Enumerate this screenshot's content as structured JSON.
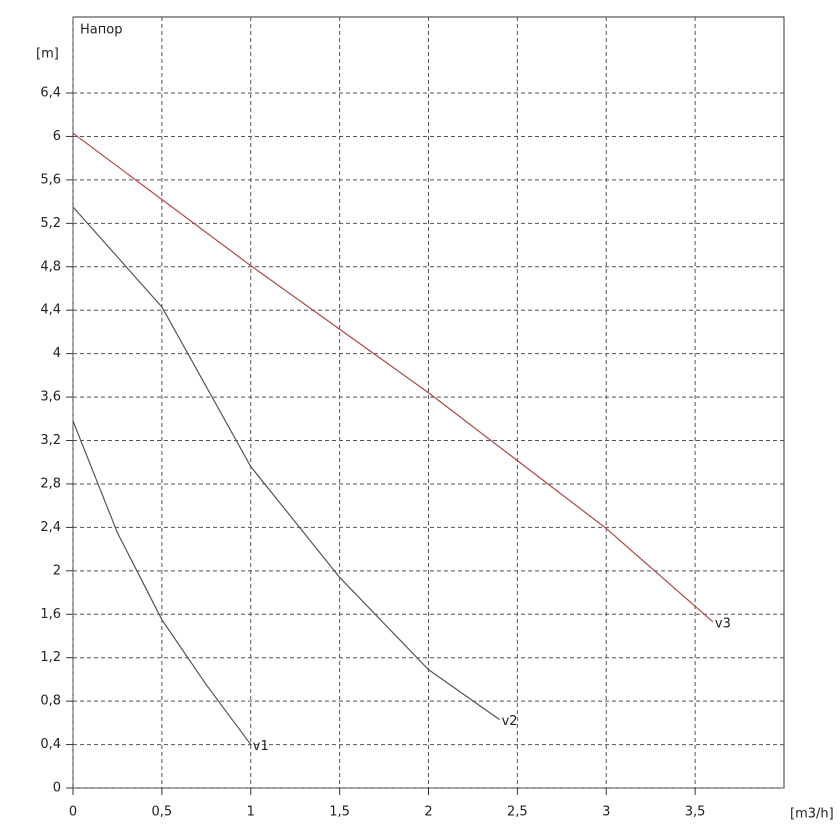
{
  "chart_data": {
    "type": "line",
    "title": "Напор",
    "y_label": "[m]",
    "x_label": "[m3/h]",
    "xlim": [
      0,
      4
    ],
    "ylim": [
      0,
      7.1
    ],
    "xticks": [
      0,
      {
        "value": 0.5,
        "label": "0,5"
      },
      1,
      {
        "value": 1.5,
        "label": "1,5"
      },
      2,
      {
        "value": 2.5,
        "label": "2,5"
      },
      3,
      {
        "value": 3.5,
        "label": "3,5"
      }
    ],
    "yticks": [
      0,
      {
        "value": 0.4,
        "label": "0,4"
      },
      {
        "value": 0.8,
        "label": "0,8"
      },
      {
        "value": 1.2,
        "label": "1,2"
      },
      {
        "value": 1.6,
        "label": "1,6"
      },
      2,
      {
        "value": 2.4,
        "label": "2,4"
      },
      {
        "value": 2.8,
        "label": "2,8"
      },
      {
        "value": 3.2,
        "label": "3,2"
      },
      {
        "value": 3.6,
        "label": "3,6"
      },
      4,
      {
        "value": 4.4,
        "label": "4,4"
      },
      {
        "value": 4.8,
        "label": "4,8"
      },
      {
        "value": 5.2,
        "label": "5,2"
      },
      {
        "value": 5.6,
        "label": "5,6"
      },
      6,
      {
        "value": 6.4,
        "label": "6,4"
      }
    ],
    "grid": true,
    "series": [
      {
        "name": "v1",
        "color": "#555555",
        "x": [
          0,
          0.25,
          0.5,
          0.75,
          1
        ],
        "values": [
          3.38,
          2.35,
          1.55,
          0.95,
          0.4
        ]
      },
      {
        "name": "v2",
        "color": "#555555",
        "x": [
          0,
          0.5,
          1,
          1.5,
          2,
          2.4
        ],
        "values": [
          5.35,
          4.43,
          2.96,
          1.94,
          1.09,
          0.63
        ]
      },
      {
        "name": "v3",
        "color": "#b04848",
        "x": [
          0,
          1,
          2,
          3,
          3.6
        ],
        "values": [
          6.03,
          4.81,
          3.64,
          2.39,
          1.53
        ]
      }
    ]
  }
}
